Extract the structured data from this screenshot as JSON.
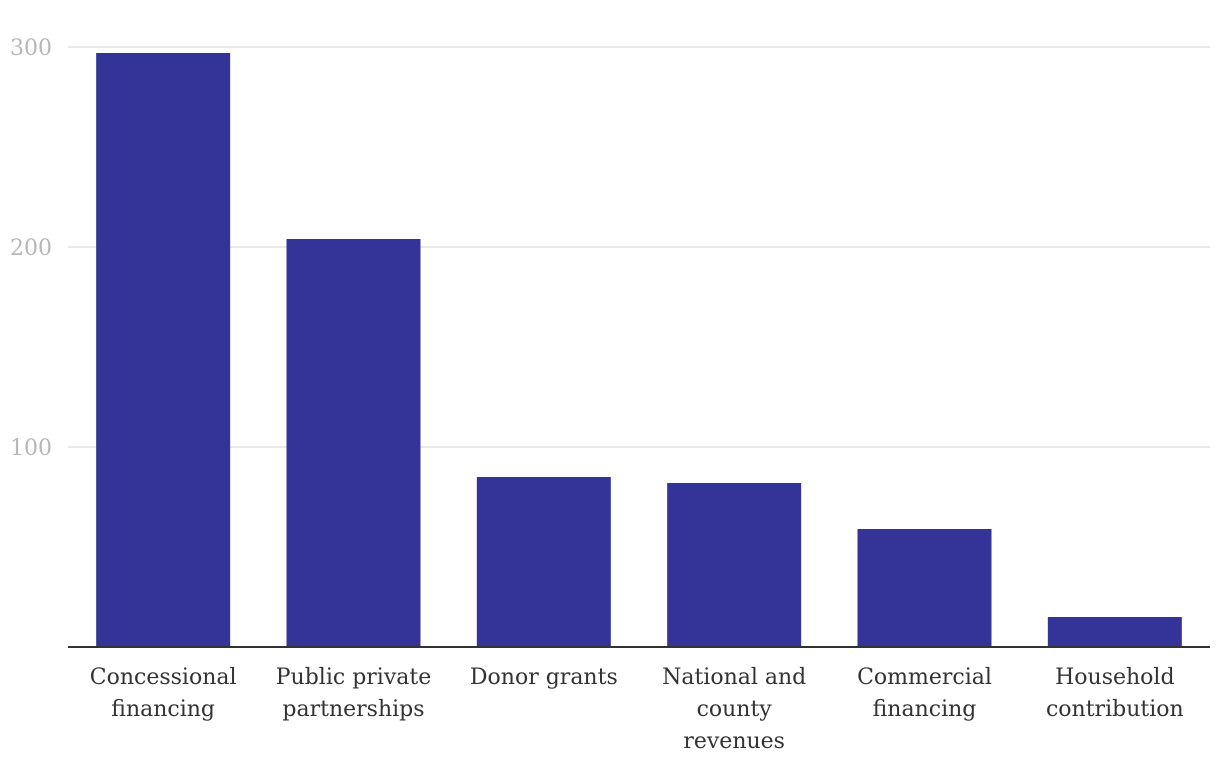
{
  "chart_data": {
    "type": "bar",
    "title": "",
    "xlabel": "",
    "ylabel": "",
    "categories": [
      [
        "Concessional",
        "financing"
      ],
      [
        "Public private",
        "partnerships"
      ],
      [
        "Donor grants"
      ],
      [
        "National and",
        "county",
        "revenues"
      ],
      [
        "Commercial",
        "financing"
      ],
      [
        "Household",
        "contribution"
      ]
    ],
    "values": [
      297,
      204,
      85,
      82,
      59,
      15
    ],
    "ylim": [
      0,
      300
    ],
    "yticks": [
      100,
      200,
      300
    ],
    "grid": true,
    "legend": "none",
    "colors": {
      "bar": "#343498",
      "grid": "#e2e2e2",
      "axis": "#333333",
      "tick_text": "#b7b7b7",
      "label_text": "#333333"
    }
  }
}
